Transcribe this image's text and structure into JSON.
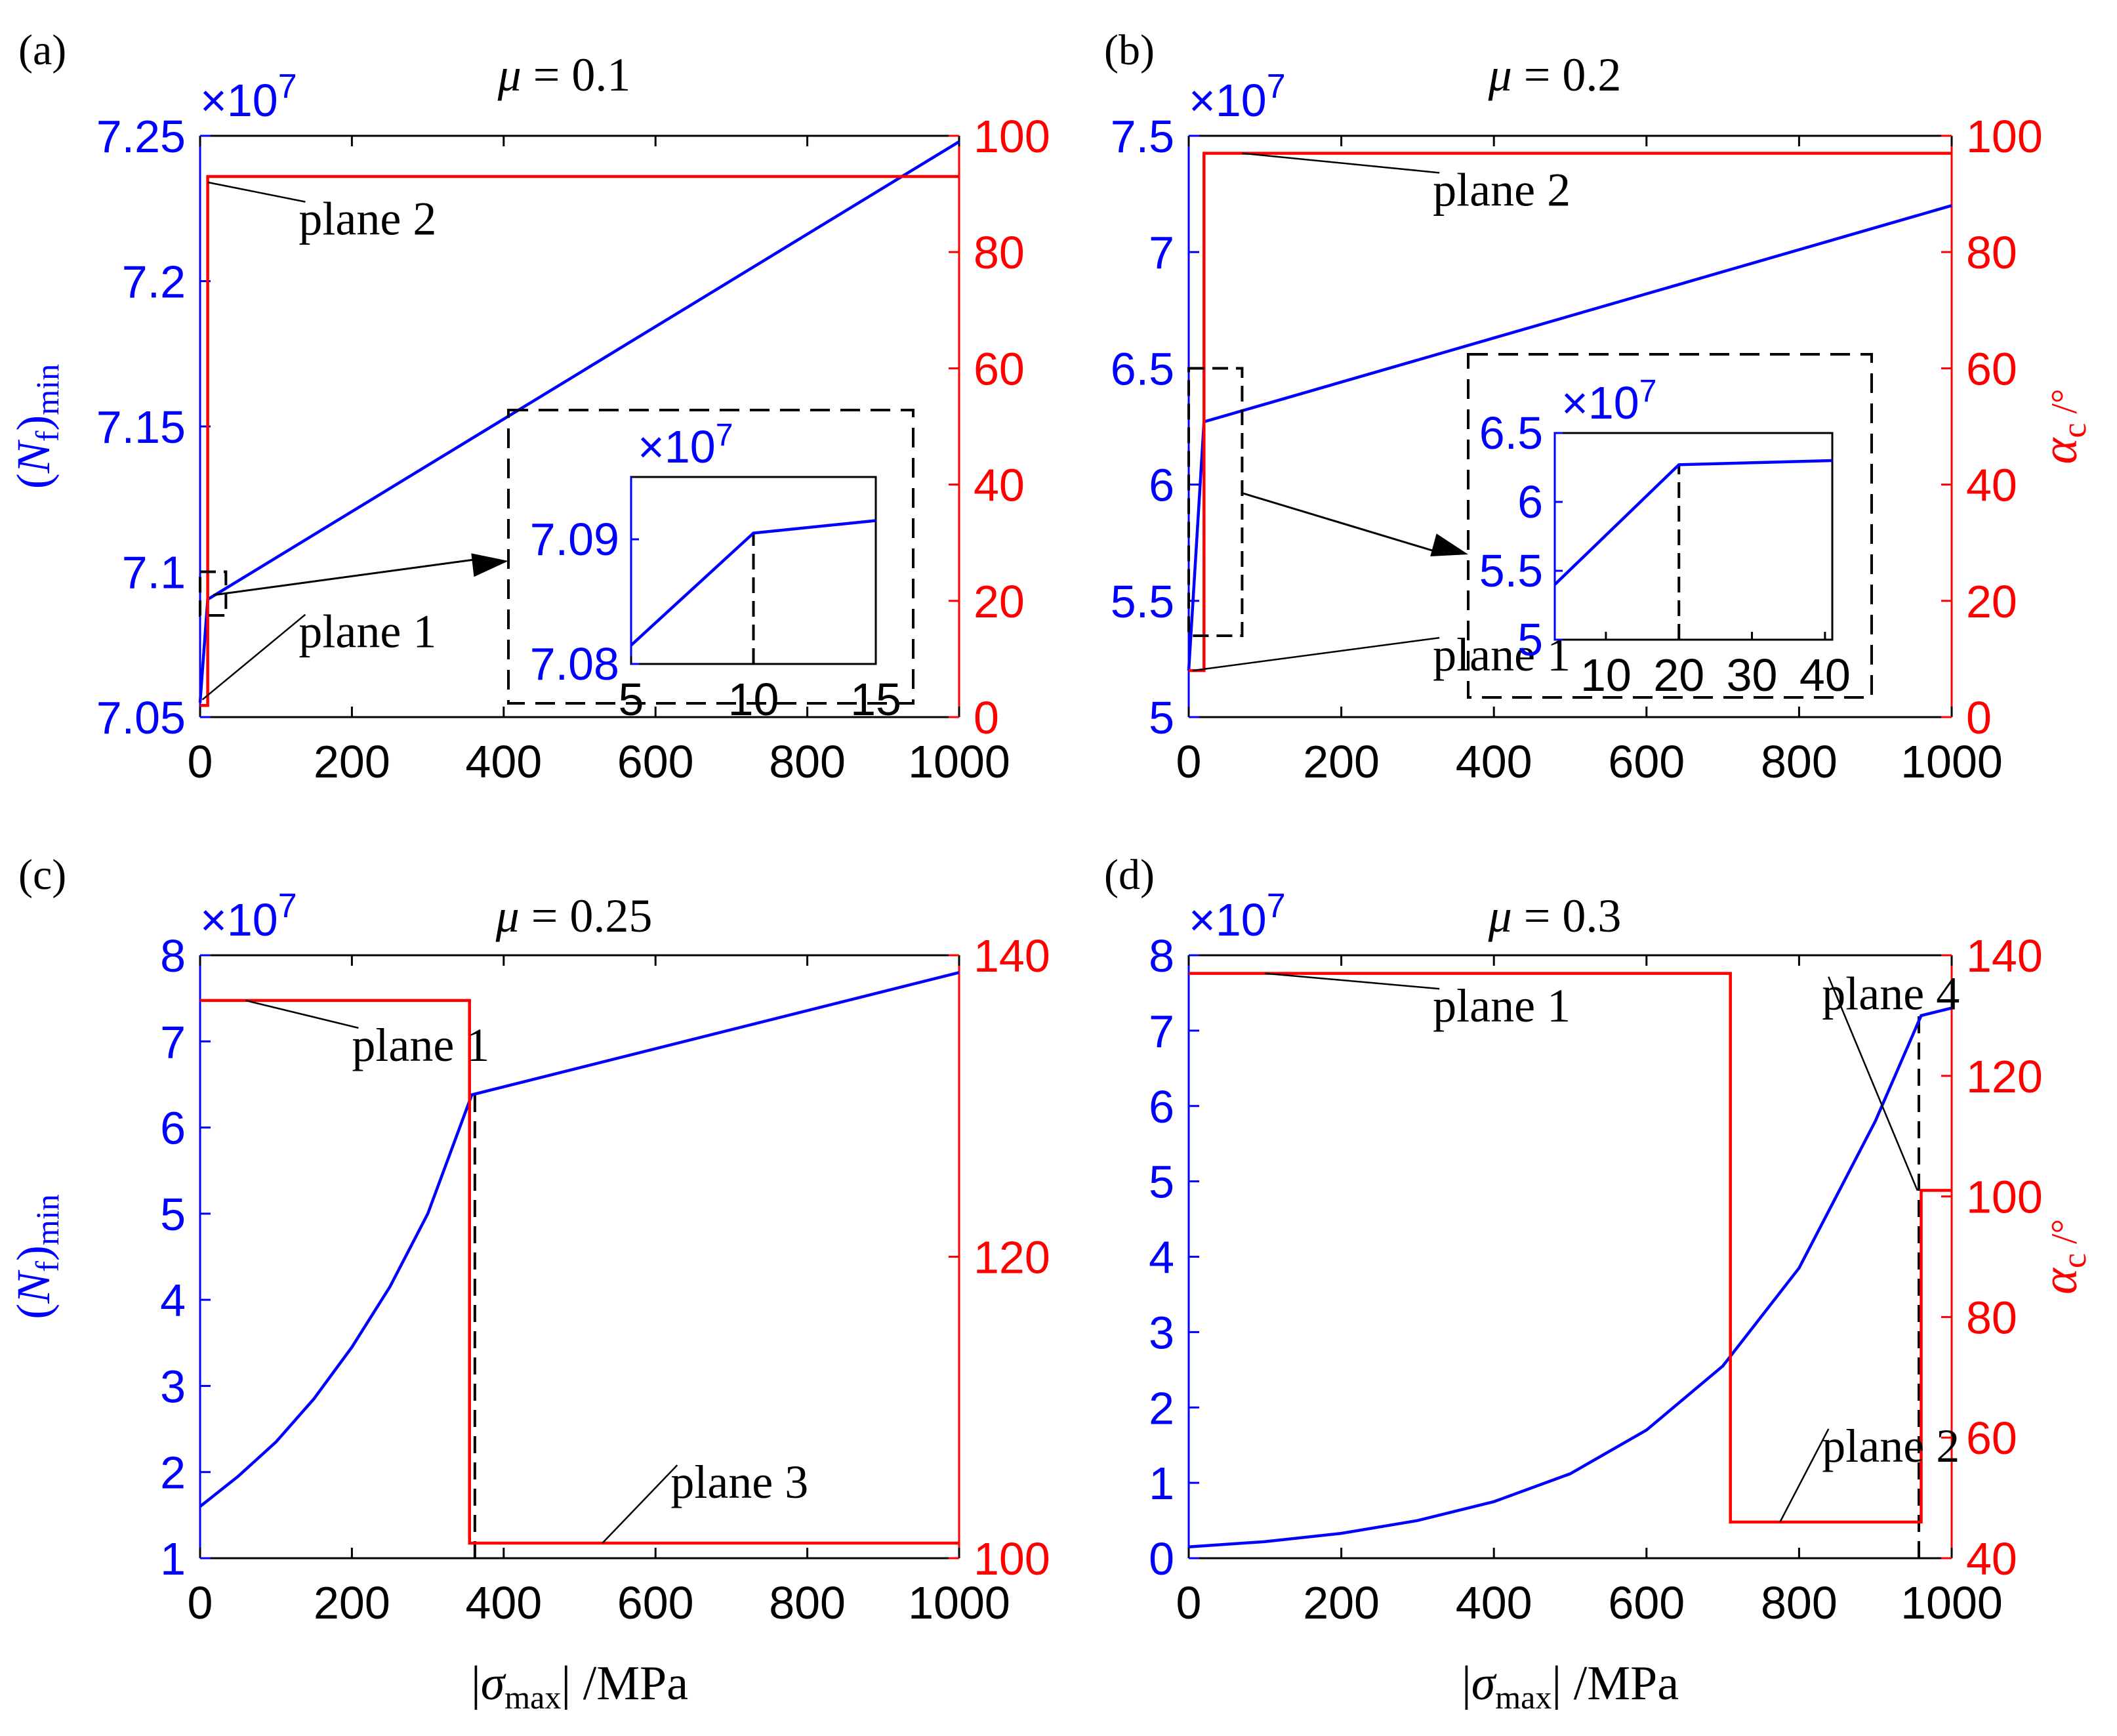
{
  "colors": {
    "left_axis": "#0000ff",
    "right_axis": "#ff0000",
    "guide": "#000000"
  },
  "chart_data": [
    {
      "type": "line",
      "panel_label": "(a)",
      "title": "μ = 0.1",
      "title_symbol": "μ",
      "title_value": "0.1",
      "exponent": "×10",
      "exponent_power": "7",
      "xlabel": "",
      "xlim": [
        0,
        1000
      ],
      "xticks": [
        "0",
        "200",
        "400",
        "600",
        "800",
        "1000"
      ],
      "ylabel_left": {
        "base": "(N",
        "sub1": "f",
        "close": ")",
        "sub2": "min"
      },
      "ylim_left": [
        7.05,
        7.25
      ],
      "yticks_left": [
        "7.05",
        "7.1",
        "7.15",
        "7.2",
        "7.25"
      ],
      "ylabel_right": null,
      "ylim_right": [
        0,
        100
      ],
      "yticks_right": [
        "0",
        "20",
        "40",
        "60",
        "80",
        "100"
      ],
      "series": [
        {
          "name": "(Nf)min",
          "axis": "left",
          "color": "#0000ff",
          "x": [
            0,
            10,
            1000
          ],
          "y": [
            7.055,
            7.0905,
            7.248
          ]
        },
        {
          "name": "αc",
          "axis": "right",
          "color": "#ff0000",
          "x": [
            0,
            10,
            10,
            1000
          ],
          "y": [
            2,
            2,
            93,
            93
          ]
        }
      ],
      "annotations": [
        {
          "text": "plane 2",
          "x": 130,
          "y": 83,
          "axis": "right",
          "lx": 10,
          "ly": 92
        },
        {
          "text": "plane 1",
          "x": 130,
          "y": 12,
          "axis": "right",
          "lx": 3,
          "ly": 3
        }
      ],
      "zoom_box": {
        "x": [
          0,
          15
        ],
        "y": [
          7.085,
          7.1
        ]
      },
      "inset": {
        "exponent": "×10",
        "exponent_power": "7",
        "xlim": [
          5,
          15
        ],
        "xticks": [
          "5",
          "10",
          "15"
        ],
        "ylim": [
          7.08,
          7.095
        ],
        "yticks": [
          "7.08",
          "7.09"
        ],
        "series": [
          {
            "x": [
              5,
              10,
              15
            ],
            "y": [
              7.0815,
              7.0905,
              7.0915
            ]
          }
        ],
        "guide_x": 10
      }
    },
    {
      "type": "line",
      "panel_label": "(b)",
      "title": "μ = 0.2",
      "title_symbol": "μ",
      "title_value": "0.2",
      "exponent": "×10",
      "exponent_power": "7",
      "xlabel": "",
      "xlim": [
        0,
        1000
      ],
      "xticks": [
        "0",
        "200",
        "400",
        "600",
        "800",
        "1000"
      ],
      "ylabel_left": null,
      "ylim_left": [
        5,
        7.5
      ],
      "yticks_left": [
        "5",
        "5.5",
        "6",
        "6.5",
        "7",
        "7.5"
      ],
      "ylabel_right": {
        "base": "α",
        "sub1": "c",
        "unit": " /°"
      },
      "ylim_right": [
        0,
        100
      ],
      "yticks_right": [
        "0",
        "20",
        "40",
        "60",
        "80",
        "100"
      ],
      "series": [
        {
          "name": "(Nf)min",
          "axis": "left",
          "color": "#0000ff",
          "x": [
            0,
            20,
            1000
          ],
          "y": [
            5.2,
            6.27,
            7.2
          ]
        },
        {
          "name": "αc",
          "axis": "right",
          "color": "#ff0000",
          "x": [
            0,
            20,
            20,
            1000
          ],
          "y": [
            8,
            8,
            97,
            97
          ]
        }
      ],
      "annotations": [
        {
          "text": "plane 2",
          "x": 320,
          "y": 88,
          "axis": "right",
          "lx": 70,
          "ly": 97
        },
        {
          "text": "plane 1",
          "x": 320,
          "y": 8,
          "axis": "right",
          "lx": 5,
          "ly": 8
        }
      ],
      "zoom_box": {
        "x": [
          0,
          70
        ],
        "y": [
          5.35,
          6.5
        ]
      },
      "inset": {
        "exponent": "×10",
        "exponent_power": "7",
        "xlim": [
          3,
          41
        ],
        "xticks": [
          "10",
          "20",
          "30",
          "40"
        ],
        "ylim": [
          5,
          6.5
        ],
        "yticks": [
          "5",
          "5.5",
          "6",
          "6.5"
        ],
        "series": [
          {
            "x": [
              3,
              20,
              41
            ],
            "y": [
              5.4,
              6.27,
              6.3
            ]
          }
        ],
        "guide_x": 20
      }
    },
    {
      "type": "line",
      "panel_label": "(c)",
      "title": "μ = 0.25",
      "title_symbol": "μ",
      "title_value": "0.25",
      "exponent": "×10",
      "exponent_power": "7",
      "xlabel": "|σmax| /MPa",
      "xlim": [
        0,
        1000
      ],
      "xticks": [
        "0",
        "200",
        "400",
        "600",
        "800",
        "1000"
      ],
      "ylabel_left": {
        "base": "(N",
        "sub1": "f",
        "close": ")",
        "sub2": "min"
      },
      "ylim_left": [
        1,
        8
      ],
      "yticks_left": [
        "1",
        "2",
        "3",
        "4",
        "5",
        "6",
        "7",
        "8"
      ],
      "ylabel_right": null,
      "ylim_right": [
        100,
        140
      ],
      "yticks_right": [
        "100",
        "120",
        "140"
      ],
      "series": [
        {
          "name": "(Nf)min",
          "axis": "left",
          "color": "#0000ff",
          "x": [
            0,
            50,
            100,
            150,
            200,
            250,
            300,
            358,
            1000
          ],
          "y": [
            1.6,
            1.95,
            2.35,
            2.85,
            3.45,
            4.15,
            5.0,
            6.38,
            7.8
          ]
        },
        {
          "name": "αc",
          "axis": "right",
          "color": "#ff0000",
          "x": [
            0,
            355,
            355,
            1000
          ],
          "y": [
            137,
            137,
            101,
            101
          ]
        }
      ],
      "annotations": [
        {
          "text": "plane 1",
          "x": 200,
          "y": 133,
          "axis": "right",
          "lx": 60,
          "ly": 137
        },
        {
          "text": "plane 3",
          "x": 620,
          "y": 104,
          "axis": "right",
          "lx": 530,
          "ly": 101
        }
      ],
      "guides": [
        {
          "x": 362,
          "y_from": 1,
          "y_to": 6.38
        }
      ]
    },
    {
      "type": "line",
      "panel_label": "(d)",
      "title": "μ = 0.3",
      "title_symbol": "μ",
      "title_value": "0.3",
      "exponent": "×10",
      "exponent_power": "7",
      "xlabel": "|σmax| /MPa",
      "xlim": [
        0,
        1000
      ],
      "xticks": [
        "0",
        "200",
        "400",
        "600",
        "800",
        "1000"
      ],
      "ylabel_left": null,
      "ylim_left": [
        0,
        8
      ],
      "yticks_left": [
        "0",
        "1",
        "2",
        "3",
        "4",
        "5",
        "6",
        "7",
        "8"
      ],
      "ylabel_right": {
        "base": "α",
        "sub1": "c",
        "unit": " /°"
      },
      "ylim_right": [
        40,
        140
      ],
      "yticks_right": [
        "40",
        "60",
        "80",
        "100",
        "120",
        "140"
      ],
      "series": [
        {
          "name": "(Nf)min",
          "axis": "left",
          "color": "#0000ff",
          "x": [
            0,
            100,
            200,
            300,
            400,
            500,
            600,
            700,
            800,
            900,
            960,
            1000
          ],
          "y": [
            0.15,
            0.22,
            0.33,
            0.5,
            0.75,
            1.12,
            1.7,
            2.55,
            3.85,
            5.8,
            7.2,
            7.3
          ]
        },
        {
          "name": "αc",
          "axis": "right",
          "color": "#ff0000",
          "x": [
            0,
            710,
            710,
            960,
            960,
            1000
          ],
          "y": [
            137,
            137,
            46,
            46,
            101,
            101
          ]
        }
      ],
      "annotations": [
        {
          "text": "plane 1",
          "x": 320,
          "y": 129,
          "axis": "right",
          "lx": 100,
          "ly": 137
        },
        {
          "text": "plane 4",
          "x": 830,
          "y": 131,
          "axis": "right",
          "lx": 955,
          "ly": 101
        },
        {
          "text": "plane 2",
          "x": 830,
          "y": 56,
          "axis": "right",
          "lx": 775,
          "ly": 46
        }
      ],
      "guides": [
        {
          "x": 957,
          "y_from": 0,
          "y_to": 7.2
        }
      ]
    }
  ],
  "x_axis_title": {
    "bar_open": "|",
    "symbol": "σ",
    "sub": "max",
    "bar_close": "|",
    "unit": " /MPa"
  }
}
